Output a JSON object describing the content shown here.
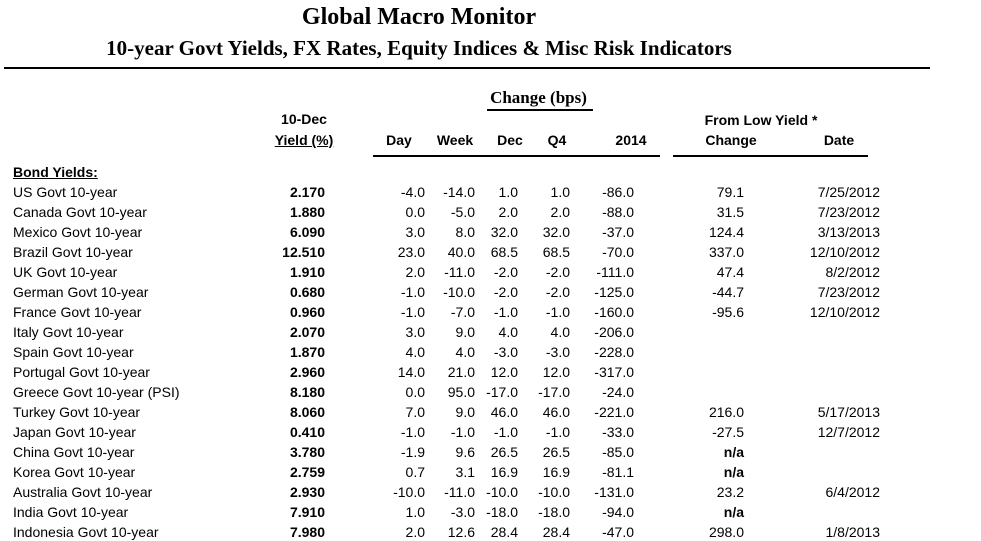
{
  "colors": {
    "background": "#ffffff",
    "text": "#000000",
    "rule": "#000000"
  },
  "header": {
    "title": "Global Macro Monitor",
    "subtitle": "10-year Govt Yields, FX Rates, Equity Indices & Misc Risk Indicators"
  },
  "table": {
    "group_headers": {
      "change_bps": "Change (bps)",
      "from_low_yield": "From Low Yield *"
    },
    "columns": {
      "yield_line1": "10-Dec",
      "yield_line2": "Yield (%)",
      "day": "Day",
      "week": "Week",
      "dec": "Dec",
      "q4": "Q4",
      "year_2014": "2014",
      "change": "Change",
      "date": "Date"
    },
    "section_label": "Bond Yields:",
    "rows": [
      {
        "label": "US Govt 10-year",
        "yield": "2.170",
        "day": "-4.0",
        "week": "-14.0",
        "dec": "1.0",
        "q4": "1.0",
        "y2014": "-86.0",
        "change": "79.1",
        "date": "7/25/2012"
      },
      {
        "label": "Canada Govt 10-year",
        "yield": "1.880",
        "day": "0.0",
        "week": "-5.0",
        "dec": "2.0",
        "q4": "2.0",
        "y2014": "-88.0",
        "change": "31.5",
        "date": "7/23/2012"
      },
      {
        "label": "Mexico Govt 10-year",
        "yield": "6.090",
        "day": "3.0",
        "week": "8.0",
        "dec": "32.0",
        "q4": "32.0",
        "y2014": "-37.0",
        "change": "124.4",
        "date": "3/13/2013"
      },
      {
        "label": "Brazil Govt 10-year",
        "yield": "12.510",
        "day": "23.0",
        "week": "40.0",
        "dec": "68.5",
        "q4": "68.5",
        "y2014": "-70.0",
        "change": "337.0",
        "date": "12/10/2012"
      },
      {
        "label": "UK Govt 10-year",
        "yield": "1.910",
        "day": "2.0",
        "week": "-11.0",
        "dec": "-2.0",
        "q4": "-2.0",
        "y2014": "-111.0",
        "change": "47.4",
        "date": "8/2/2012"
      },
      {
        "label": "German Govt 10-year",
        "yield": "0.680",
        "day": "-1.0",
        "week": "-10.0",
        "dec": "-2.0",
        "q4": "-2.0",
        "y2014": "-125.0",
        "change": "-44.7",
        "date": "7/23/2012"
      },
      {
        "label": "France Govt 10-year",
        "yield": "0.960",
        "day": "-1.0",
        "week": "-7.0",
        "dec": "-1.0",
        "q4": "-1.0",
        "y2014": "-160.0",
        "change": "-95.6",
        "date": "12/10/2012"
      },
      {
        "label": "Italy Govt 10-year",
        "yield": "2.070",
        "day": "3.0",
        "week": "9.0",
        "dec": "4.0",
        "q4": "4.0",
        "y2014": "-206.0",
        "change": "",
        "date": ""
      },
      {
        "label": "Spain Govt 10-year",
        "yield": "1.870",
        "day": "4.0",
        "week": "4.0",
        "dec": "-3.0",
        "q4": "-3.0",
        "y2014": "-228.0",
        "change": "",
        "date": ""
      },
      {
        "label": "Portugal Govt 10-year",
        "yield": "2.960",
        "day": "14.0",
        "week": "21.0",
        "dec": "12.0",
        "q4": "12.0",
        "y2014": "-317.0",
        "change": "",
        "date": ""
      },
      {
        "label": "Greece Govt 10-year (PSI)",
        "yield": "8.180",
        "day": "0.0",
        "week": "95.0",
        "dec": "-17.0",
        "q4": "-17.0",
        "y2014": "-24.0",
        "change": "",
        "date": ""
      },
      {
        "label": "Turkey Govt 10-year",
        "yield": "8.060",
        "day": "7.0",
        "week": "9.0",
        "dec": "46.0",
        "q4": "46.0",
        "y2014": "-221.0",
        "change": "216.0",
        "date": "5/17/2013"
      },
      {
        "label": "Japan Govt 10-year",
        "yield": "0.410",
        "day": "-1.0",
        "week": "-1.0",
        "dec": "-1.0",
        "q4": "-1.0",
        "y2014": "-33.0",
        "change": "-27.5",
        "date": "12/7/2012"
      },
      {
        "label": "China Govt 10-year",
        "yield": "3.780",
        "day": "-1.9",
        "week": "9.6",
        "dec": "26.5",
        "q4": "26.5",
        "y2014": "-85.0",
        "change": "n/a",
        "date": ""
      },
      {
        "label": "Korea Govt 10-year",
        "yield": "2.759",
        "day": "0.7",
        "week": "3.1",
        "dec": "16.9",
        "q4": "16.9",
        "y2014": "-81.1",
        "change": "n/a",
        "date": ""
      },
      {
        "label": "Australia Govt 10-year",
        "yield": "2.930",
        "day": "-10.0",
        "week": "-11.0",
        "dec": "-10.0",
        "q4": "-10.0",
        "y2014": "-131.0",
        "change": "23.2",
        "date": "6/4/2012"
      },
      {
        "label": "India Govt 10-year",
        "yield": "7.910",
        "day": "1.0",
        "week": "-3.0",
        "dec": "-18.0",
        "q4": "-18.0",
        "y2014": "-94.0",
        "change": "n/a",
        "date": ""
      },
      {
        "label": "Indonesia Govt 10-year",
        "yield": "7.980",
        "day": "2.0",
        "week": "12.6",
        "dec": "28.4",
        "q4": "28.4",
        "y2014": "-47.0",
        "change": "298.0",
        "date": "1/8/2013"
      }
    ]
  }
}
